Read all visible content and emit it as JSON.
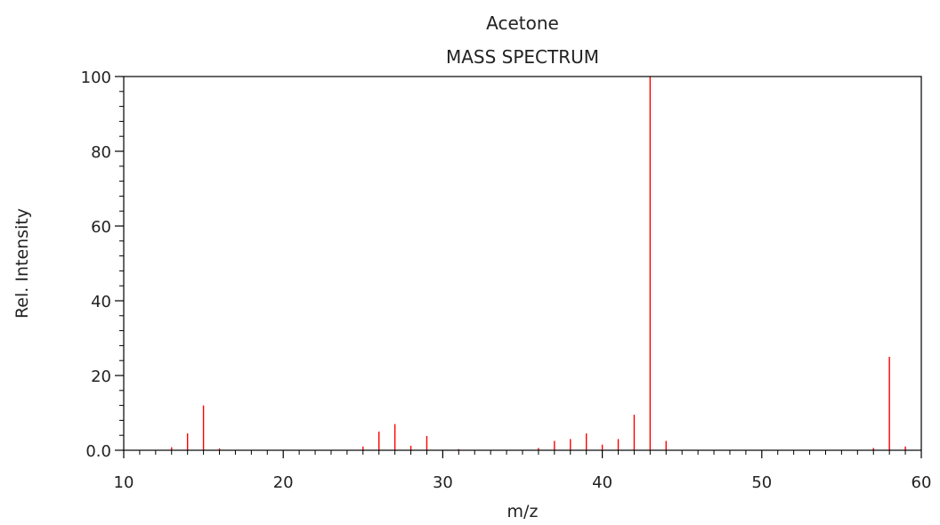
{
  "chart_data": {
    "type": "bar",
    "title": "Acetone",
    "subtitle": "MASS SPECTRUM",
    "xlabel": "m/z",
    "ylabel": "Rel. Intensity",
    "xlim": [
      10,
      60
    ],
    "ylim": [
      0,
      100
    ],
    "x_ticks": [
      10,
      20,
      30,
      40,
      50,
      60
    ],
    "x_tick_labels": [
      "10",
      "20",
      "30",
      "40",
      "50",
      "60"
    ],
    "y_ticks": [
      0,
      20,
      40,
      60,
      80,
      100
    ],
    "y_tick_labels": [
      "0.0",
      "20",
      "40",
      "60",
      "80",
      "100"
    ],
    "x_minor_step": 1,
    "y_minor_step": 4,
    "grid": false,
    "legend": "none",
    "bar_color": "#ff0000",
    "axis_color": "#000000",
    "series": [
      {
        "x": [
          13,
          14,
          15,
          16,
          25,
          26,
          27,
          28,
          29,
          31,
          36,
          37,
          38,
          39,
          40,
          41,
          42,
          43,
          44,
          57,
          58,
          59
        ],
        "values": [
          0.8,
          4.5,
          12.0,
          0.5,
          1.0,
          5.0,
          7.0,
          1.2,
          3.8,
          0.3,
          0.6,
          2.5,
          3.0,
          4.5,
          1.5,
          3.0,
          9.5,
          100,
          2.5,
          0.6,
          25,
          1.0
        ]
      }
    ]
  }
}
